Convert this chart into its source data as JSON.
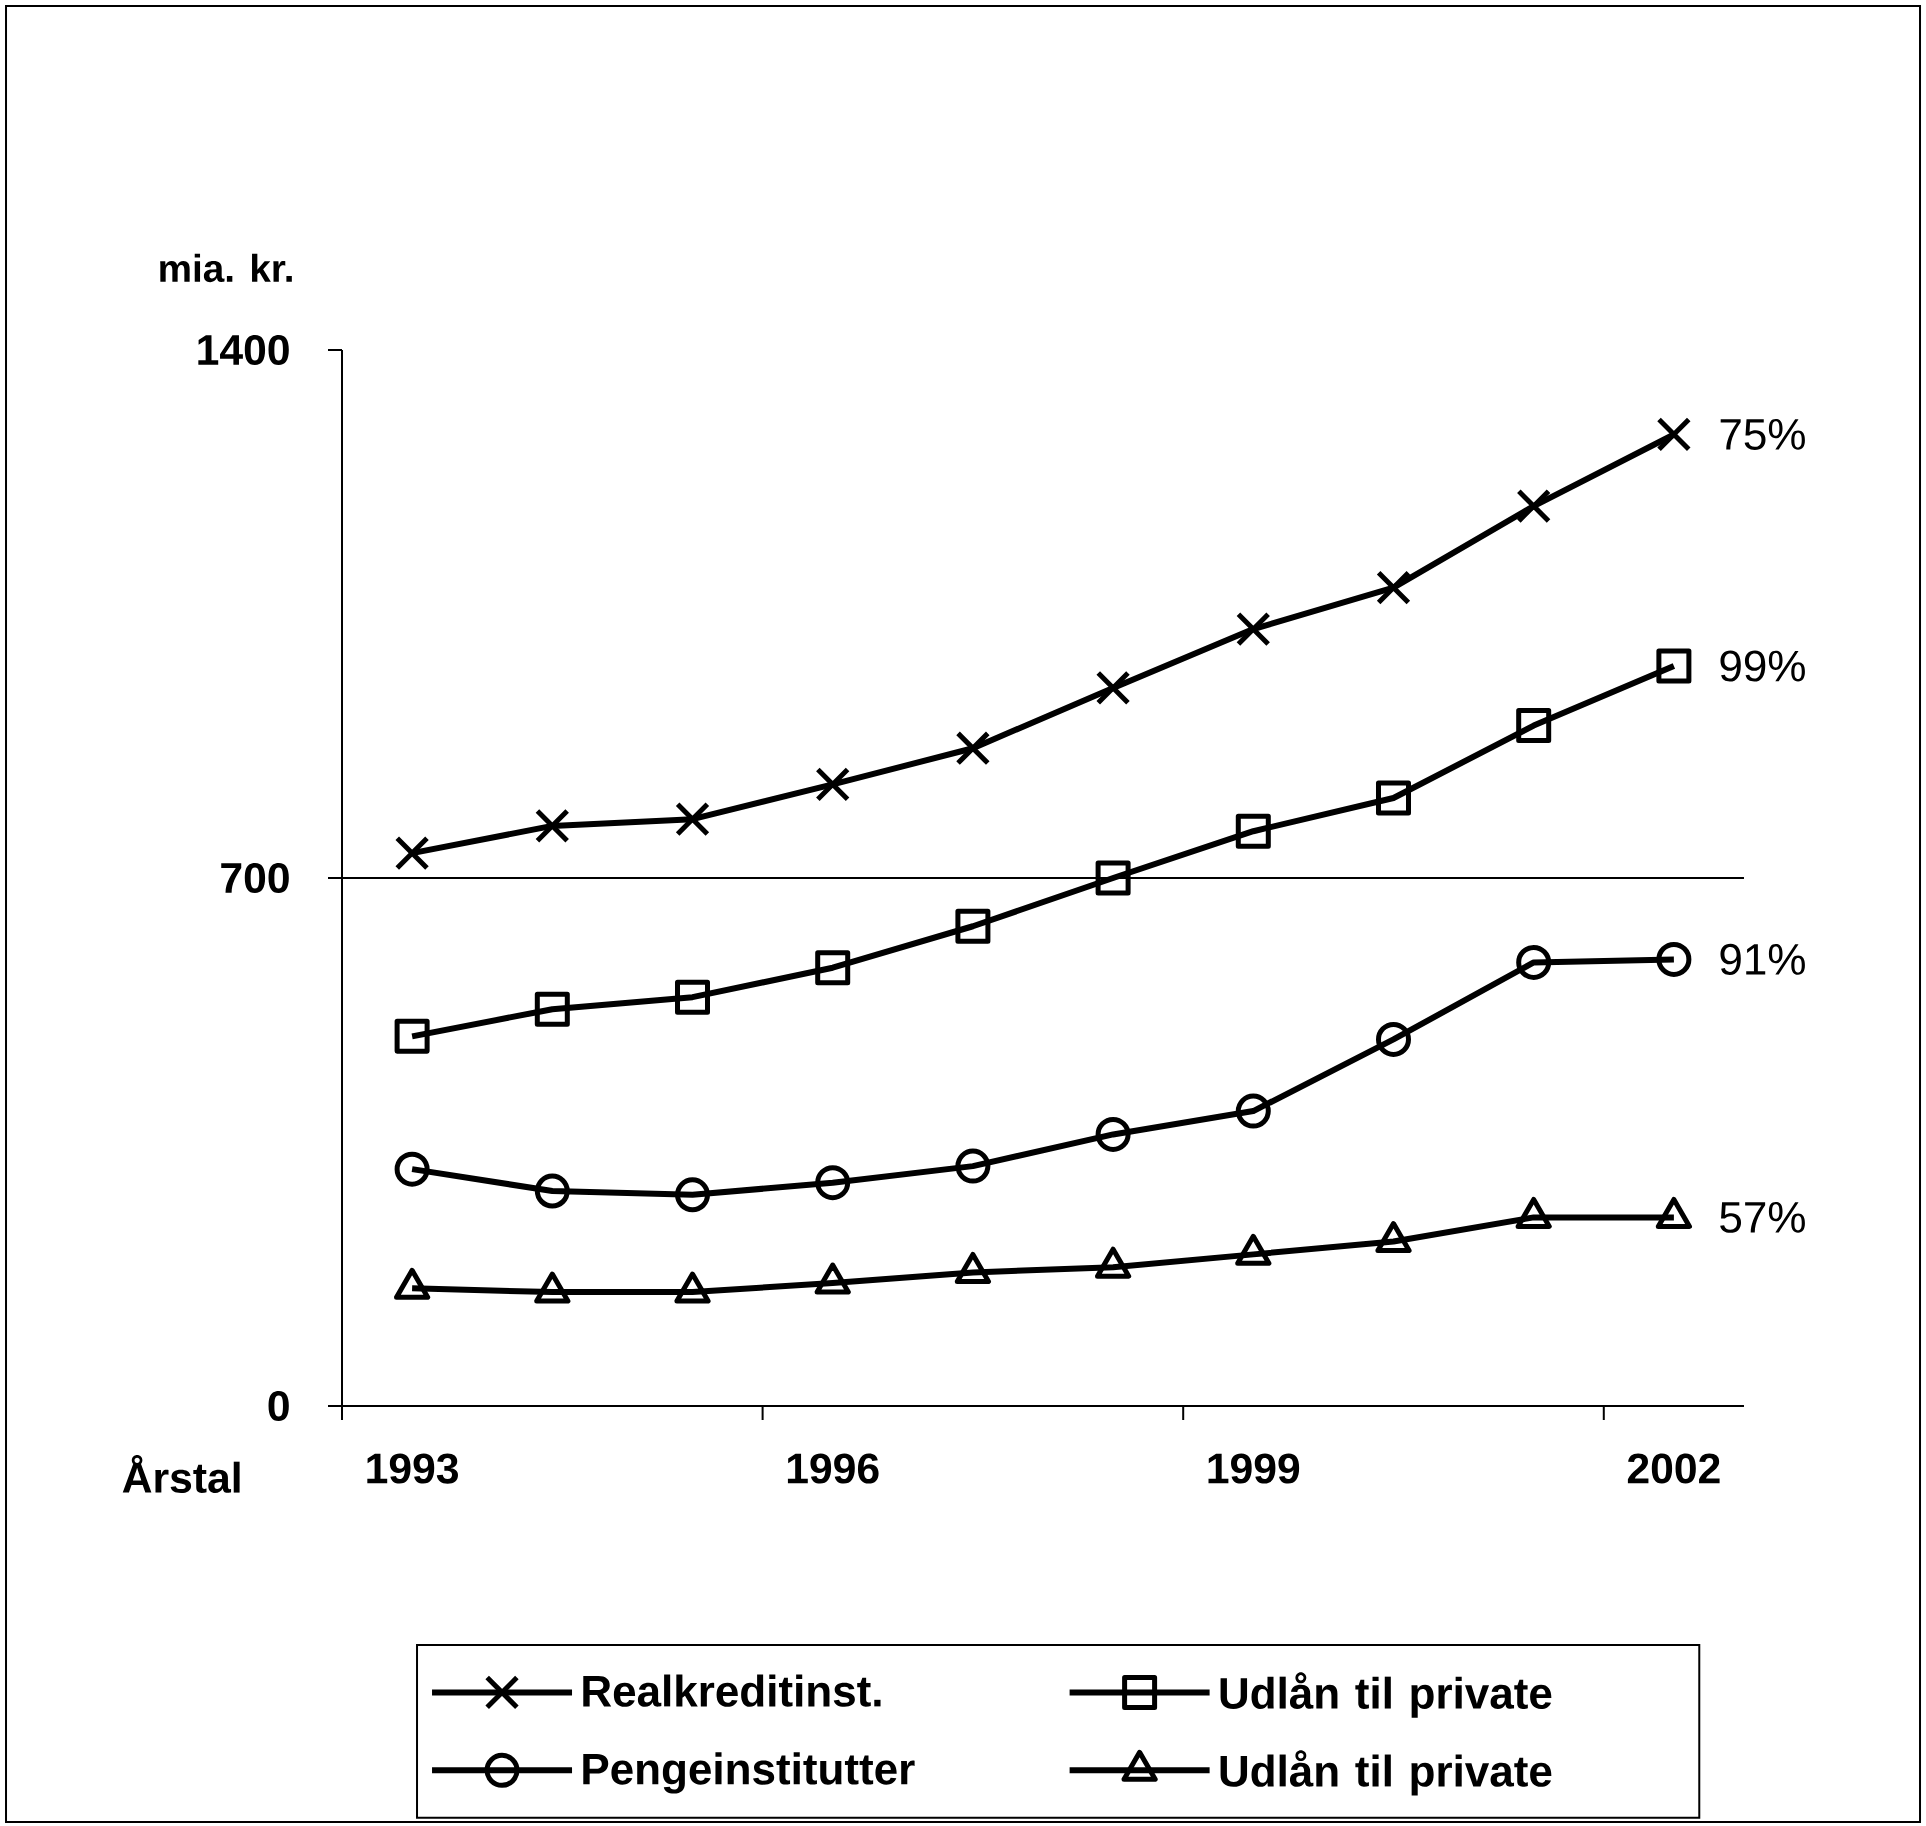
{
  "chart_data": {
    "type": "line",
    "xlabel": "Årstal",
    "ylabel": "mia. kr.",
    "categories": [
      "1993",
      null,
      null,
      "1996",
      null,
      null,
      "1999",
      null,
      null,
      "2002"
    ],
    "ylim": [
      0,
      1400
    ],
    "yticks": [
      0,
      700,
      1400
    ],
    "legend": "bottom",
    "series": [
      {
        "name": "Realkreditinst.",
        "color": "#000000",
        "marker": "cross",
        "values": [
          733,
          769,
          778,
          824,
          872,
          952,
          1030,
          1085,
          1193,
          1288
        ]
      },
      {
        "name": "Udlån til private",
        "color": "#000000",
        "marker": "square",
        "values": [
          490,
          526,
          542,
          581,
          636,
          700,
          762,
          806,
          902,
          981
        ]
      },
      {
        "name": "Pengeinstitutter",
        "color": "#000000",
        "marker": "circle",
        "values": [
          314,
          285,
          280,
          296,
          318,
          360,
          391,
          486,
          588,
          592
        ]
      },
      {
        "name": "Udlån til private",
        "color": "#000000",
        "marker": "triangle",
        "values": [
          156,
          151,
          151,
          163,
          177,
          184,
          201,
          218,
          250,
          250
        ]
      }
    ],
    "annotations": [
      {
        "text": "75%",
        "x": "2002",
        "y": 1288
      },
      {
        "text": "99%",
        "x": "2002",
        "y": 981
      },
      {
        "text": "91%",
        "x": "2002",
        "y": 592
      },
      {
        "text": "57%",
        "x": "2002",
        "y": 250
      }
    ],
    "ref_lines": [
      {
        "axis": "y",
        "value": 700
      }
    ]
  }
}
